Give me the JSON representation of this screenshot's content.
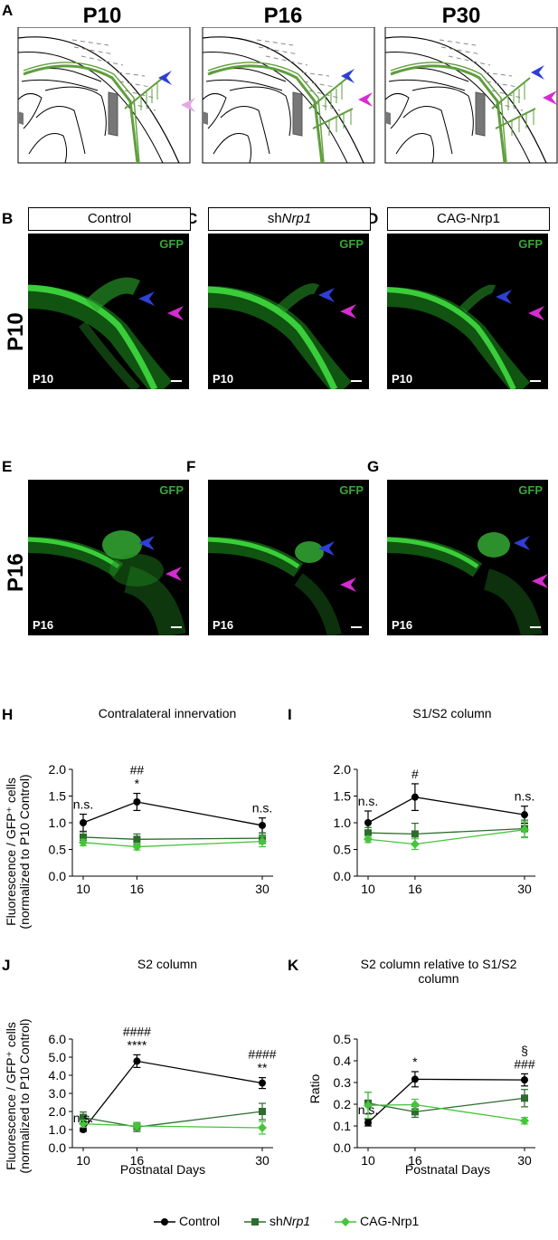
{
  "panel_letters": {
    "A": "A",
    "B": "B",
    "C": "C",
    "D": "D",
    "E": "E",
    "F": "F",
    "G": "G",
    "H": "H",
    "I": "I",
    "J": "J",
    "K": "K"
  },
  "schematic_titles": [
    "P10",
    "P16",
    "P30"
  ],
  "conditions": {
    "control": "Control",
    "sh_prefix": "sh",
    "sh_gene": "Nrp1",
    "cag": "CAG-Nrp1"
  },
  "row_labels": {
    "p10": "P10",
    "p16": "P16"
  },
  "micro_gfp": "GFP",
  "micro_age": {
    "p10": "P10",
    "p16": "P16"
  },
  "colors": {
    "blue_arrow": "#2e3fd6",
    "magenta_arrow": "#d62bd0",
    "pink_arrow": "#e7a6e6",
    "green_axon": "#5f9e3c",
    "control": "#000000",
    "shNrp1": "#2e6b2e",
    "cag": "#46c43c"
  },
  "chart_data": [
    {
      "panel": "H",
      "type": "line",
      "title": "Contralateral innervation",
      "xlabel": "",
      "ylabel": "Fluorescence / GFP⁺ cells (normalized to P10 Control)",
      "x": [
        10,
        16,
        30
      ],
      "xticks": [
        "10",
        "16",
        "30"
      ],
      "ylim": [
        0,
        2.0
      ],
      "yticks": [
        "0.0",
        "0.5",
        "1.0",
        "1.5",
        "2.0"
      ],
      "series": [
        {
          "name": "Control",
          "values": [
            1.0,
            1.39,
            0.95
          ],
          "err": [
            0.16,
            0.16,
            0.14
          ]
        },
        {
          "name": "shNrp1",
          "values": [
            0.73,
            0.69,
            0.71
          ],
          "err": [
            0.1,
            0.1,
            0.1
          ]
        },
        {
          "name": "CAG-Nrp1",
          "values": [
            0.63,
            0.55,
            0.65
          ],
          "err": [
            0.06,
            0.06,
            0.1
          ]
        }
      ],
      "annotations": [
        {
          "x": 10,
          "lines": [
            "n.s."
          ]
        },
        {
          "x": 16,
          "lines": [
            "##",
            "*"
          ]
        },
        {
          "x": 30,
          "lines": [
            "n.s."
          ]
        }
      ]
    },
    {
      "panel": "I",
      "type": "line",
      "title": "S1/S2 column",
      "xlabel": "",
      "ylabel": "",
      "x": [
        10,
        16,
        30
      ],
      "xticks": [
        "10",
        "16",
        "30"
      ],
      "ylim": [
        0,
        2.0
      ],
      "yticks": [
        "0.0",
        "0.5",
        "1.0",
        "1.5",
        "2.0"
      ],
      "series": [
        {
          "name": "Control",
          "values": [
            1.0,
            1.48,
            1.15
          ],
          "err": [
            0.22,
            0.25,
            0.16
          ]
        },
        {
          "name": "shNrp1",
          "values": [
            0.81,
            0.79,
            0.89
          ],
          "err": [
            0.1,
            0.2,
            0.16
          ]
        },
        {
          "name": "CAG-Nrp1",
          "values": [
            0.69,
            0.6,
            0.87
          ],
          "err": [
            0.06,
            0.1,
            0.15
          ]
        }
      ],
      "annotations": [
        {
          "x": 10,
          "lines": [
            "n.s."
          ]
        },
        {
          "x": 16,
          "lines": [
            "#"
          ]
        },
        {
          "x": 30,
          "lines": [
            "n.s."
          ]
        }
      ]
    },
    {
      "panel": "J",
      "type": "line",
      "title": "S2 column",
      "xlabel": "Postnatal Days",
      "ylabel": "Fluorescence / GFP⁺ cells (normalized to P10 Control)",
      "x": [
        10,
        16,
        30
      ],
      "xticks": [
        "10",
        "16",
        "30"
      ],
      "ylim": [
        0,
        6.0
      ],
      "yticks": [
        "0.0",
        "1.0",
        "2.0",
        "3.0",
        "4.0",
        "5.0",
        "6.0"
      ],
      "series": [
        {
          "name": "Control",
          "values": [
            1.0,
            4.78,
            3.57
          ],
          "err": [
            0.1,
            0.35,
            0.3
          ]
        },
        {
          "name": "shNrp1",
          "values": [
            1.67,
            1.14,
            2.0
          ],
          "err": [
            0.3,
            0.25,
            0.45
          ]
        },
        {
          "name": "CAG-Nrp1",
          "values": [
            1.32,
            1.2,
            1.1
          ],
          "err": [
            0.2,
            0.2,
            0.35
          ]
        }
      ],
      "annotations": [
        {
          "x": 10,
          "lines": [
            "n.s."
          ]
        },
        {
          "x": 16,
          "lines": [
            "####",
            "****"
          ]
        },
        {
          "x": 30,
          "lines": [
            "####",
            "**"
          ]
        }
      ]
    },
    {
      "panel": "K",
      "type": "line",
      "title": "S2 column relative to S1/S2 column",
      "xlabel": "Postnatal Days",
      "ylabel": "Ratio",
      "x": [
        10,
        16,
        30
      ],
      "xticks": [
        "10",
        "16",
        "30"
      ],
      "ylim": [
        0,
        0.5
      ],
      "yticks": [
        "0.0",
        "0.1",
        "0.2",
        "0.3",
        "0.4",
        "0.5"
      ],
      "series": [
        {
          "name": "Control",
          "values": [
            0.115,
            0.315,
            0.312
          ],
          "err": [
            0.015,
            0.035,
            0.028
          ]
        },
        {
          "name": "shNrp1",
          "values": [
            0.205,
            0.165,
            0.228
          ],
          "err": [
            0.05,
            0.025,
            0.04
          ]
        },
        {
          "name": "CAG-Nrp1",
          "values": [
            0.195,
            0.198,
            0.124
          ],
          "err": [
            0.06,
            0.025,
            0.015
          ]
        }
      ],
      "annotations": [
        {
          "x": 10,
          "lines": [
            "n.s."
          ]
        },
        {
          "x": 16,
          "lines": [
            "*"
          ]
        },
        {
          "x": 30,
          "lines": [
            "§",
            "###"
          ]
        }
      ]
    }
  ],
  "chart_titles": {
    "H": "Contralateral innervation",
    "I": "S1/S2 column",
    "J": "S2 column",
    "K_line1": "S2 column relative to S1/S2",
    "K_line2": "column"
  },
  "y_axis_labels": {
    "line1": "Fluorescence / GFP⁺ cells",
    "line2": "(normalized to P10 Control)",
    "ratio": "Ratio"
  },
  "x_axis_label": "Postnatal Days",
  "legend": [
    {
      "label": "Control"
    },
    {
      "label_prefix": "sh",
      "label_gene": "Nrp1"
    },
    {
      "label": "CAG-Nrp1"
    }
  ]
}
